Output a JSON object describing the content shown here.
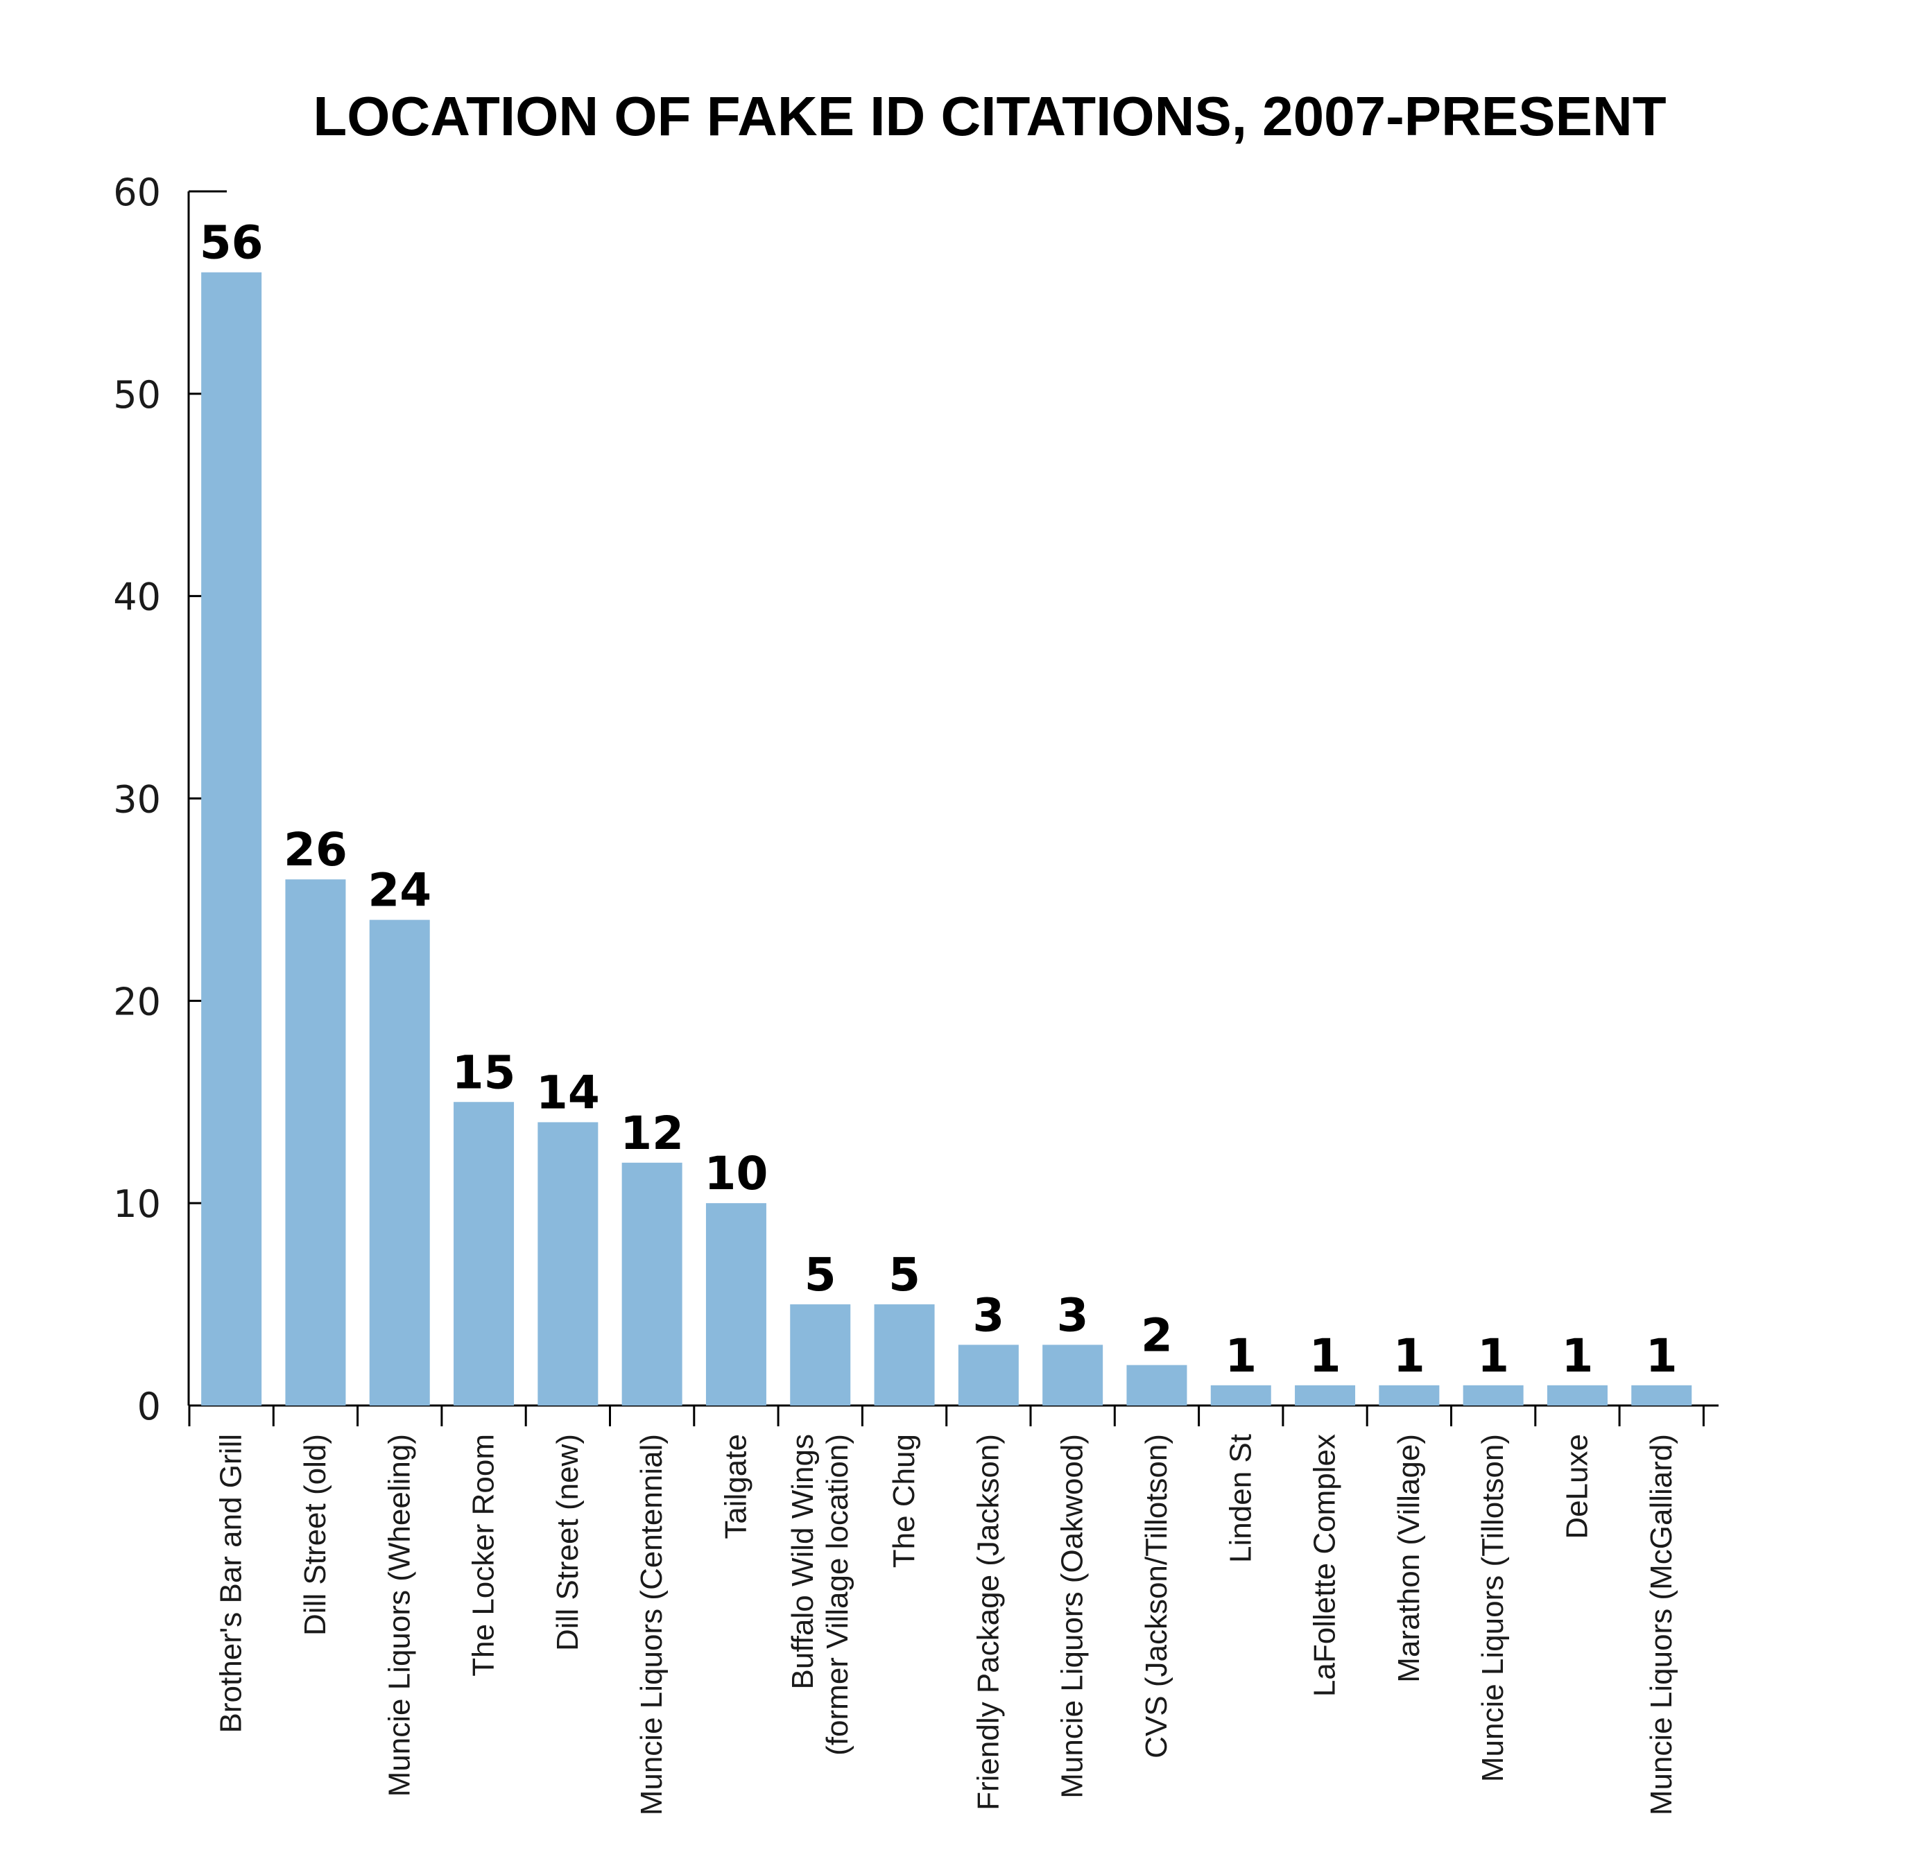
{
  "chart_data": {
    "type": "bar",
    "title": "LOCATION OF FAKE ID CITATIONS, 2007-PRESENT",
    "xlabel": "",
    "ylabel": "",
    "ylim": [
      0,
      60
    ],
    "yticks": [
      "0",
      "10",
      "20",
      "30",
      "40",
      "50",
      "60"
    ],
    "bar_color": "#8ab9dc",
    "grid": false,
    "categories": [
      [
        "Brother's Bar and Grill"
      ],
      [
        "Dill Street (old)"
      ],
      [
        "Muncie Liquors (Wheeling)"
      ],
      [
        "The Locker Room"
      ],
      [
        "Dill Street (new)"
      ],
      [
        "Muncie Liquors (Centennial)"
      ],
      [
        "Tailgate"
      ],
      [
        "Buffalo Wild Wings",
        "(former Village location)"
      ],
      [
        "The Chug"
      ],
      [
        "Friendly Package (Jackson)"
      ],
      [
        "Muncie Liquors (Oakwood)"
      ],
      [
        "CVS (Jackson/Tillotson)"
      ],
      [
        "Linden St"
      ],
      [
        "LaFollette Complex"
      ],
      [
        "Marathon (Village)"
      ],
      [
        "Muncie Liquors (Tillotson)"
      ],
      [
        "DeLuxe"
      ],
      [
        "Muncie Liquors (McGalliard)"
      ]
    ],
    "values": [
      56,
      26,
      24,
      15,
      14,
      12,
      10,
      5,
      5,
      3,
      3,
      2,
      1,
      1,
      1,
      1,
      1,
      1
    ]
  }
}
